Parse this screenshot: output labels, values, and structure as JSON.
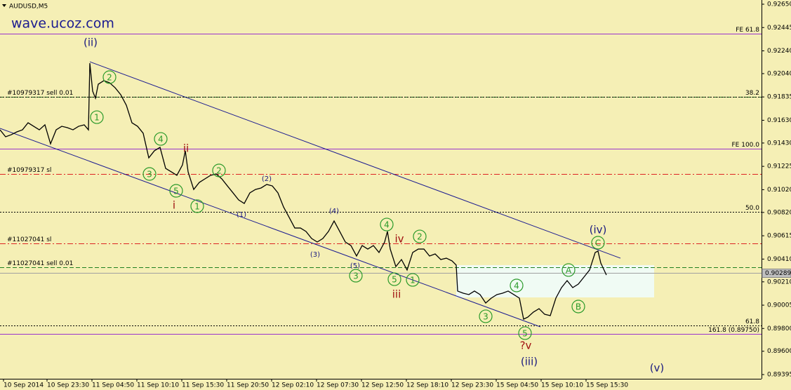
{
  "chart_data": {
    "type": "line",
    "title": "AUDUSD,M5",
    "subtitle": "wave.ucoz.com",
    "xlim": [
      0,
      1085
    ],
    "ylim": [
      0.89358,
      0.92687
    ],
    "xticks": [
      {
        "value": 5,
        "label": "10 Sep 2014"
      },
      {
        "value": 67,
        "label": "10 Sep 23:30"
      },
      {
        "value": 131,
        "label": "11 Sep 04:50"
      },
      {
        "value": 195,
        "label": "11 Sep 10:10"
      },
      {
        "value": 259,
        "label": "11 Sep 15:30"
      },
      {
        "value": 323,
        "label": "11 Sep 20:50"
      },
      {
        "value": 387,
        "label": "12 Sep 02:10"
      },
      {
        "value": 451,
        "label": "12 Sep 07:30"
      },
      {
        "value": 515,
        "label": "12 Sep 12:50"
      },
      {
        "value": 579,
        "label": "12 Sep 18:10"
      },
      {
        "value": 643,
        "label": "12 Sep 23:30"
      },
      {
        "value": 707,
        "label": "15 Sep 04:50"
      },
      {
        "value": 771,
        "label": "15 Sep 10:10"
      },
      {
        "value": 835,
        "label": "15 Sep 15:30"
      }
    ],
    "yticks": [
      {
        "value": 0.9265,
        "label": "0.92650"
      },
      0.92445,
      {
        "value": 0.9224,
        "label": "0.92240"
      },
      {
        "value": 0.9204,
        "label": "0.92040"
      },
      0.91835,
      {
        "value": 0.9163,
        "label": "0.91630"
      },
      {
        "value": 0.9143,
        "label": "0.91430"
      },
      0.91225,
      {
        "value": 0.9102,
        "label": "0.91020"
      },
      {
        "value": 0.9082,
        "label": "0.90820"
      },
      0.90615,
      {
        "value": 0.9041,
        "label": "0.90410"
      },
      {
        "value": 0.9021,
        "label": "0.90210"
      },
      0.90005,
      {
        "value": 0.898,
        "label": "0.89800"
      },
      {
        "value": 0.896,
        "label": "0.89600"
      },
      0.89395
    ],
    "series": [
      {
        "name": "AUDUSD",
        "color": "#000000",
        "x": [
          0,
          8,
          16,
          24,
          32,
          40,
          48,
          56,
          64,
          72,
          80,
          88,
          96,
          104,
          112,
          120,
          126,
          128,
          132,
          136,
          140,
          148,
          156,
          164,
          172,
          180,
          188,
          196,
          204,
          212,
          220,
          228,
          236,
          244,
          252,
          260,
          264,
          268,
          276,
          284,
          292,
          300,
          308,
          316,
          324,
          332,
          340,
          348,
          356,
          364,
          372,
          380,
          388,
          396,
          404,
          412,
          420,
          428,
          436,
          444,
          452,
          460,
          468,
          476,
          484,
          492,
          500,
          508,
          516,
          524,
          532,
          540,
          548,
          552,
          556,
          564,
          572,
          580,
          588,
          596,
          604,
          612,
          620,
          628,
          636,
          644,
          650,
          652,
          660,
          668,
          676,
          684,
          692,
          700,
          708,
          716,
          724,
          732,
          740,
          746,
          752,
          760,
          768,
          776,
          784,
          792,
          800,
          808,
          816,
          824,
          832,
          840,
          848,
          852,
          856,
          864
        ],
        "values": [
          0.91546,
          0.91485,
          0.91503,
          0.91528,
          0.91546,
          0.91608,
          0.91577,
          0.91546,
          0.9159,
          0.91423,
          0.91546,
          0.91577,
          0.91565,
          0.91546,
          0.91577,
          0.9159,
          0.91546,
          0.92132,
          0.91886,
          0.91824,
          0.91947,
          0.91978,
          0.9196,
          0.91916,
          0.91855,
          0.91762,
          0.91608,
          0.91577,
          0.91516,
          0.913,
          0.91362,
          0.91392,
          0.91207,
          0.91177,
          0.91146,
          0.91238,
          0.91362,
          0.91177,
          0.91022,
          0.91084,
          0.91115,
          0.91146,
          0.91158,
          0.91115,
          0.91053,
          0.90992,
          0.9093,
          0.90899,
          0.90992,
          0.91022,
          0.91035,
          0.91066,
          0.91053,
          0.90992,
          0.90868,
          0.90776,
          0.90683,
          0.90683,
          0.90653,
          0.90591,
          0.9056,
          0.90591,
          0.90653,
          0.90745,
          0.90653,
          0.9056,
          0.90529,
          0.90437,
          0.90529,
          0.90498,
          0.90529,
          0.90468,
          0.9056,
          0.90653,
          0.90498,
          0.90344,
          0.90406,
          0.90314,
          0.90468,
          0.90498,
          0.90498,
          0.90437,
          0.90455,
          0.90406,
          0.90418,
          0.90394,
          0.90357,
          0.90129,
          0.9011,
          0.90098,
          0.90129,
          0.90098,
          0.90024,
          0.90067,
          0.90098,
          0.9011,
          0.90129,
          0.90098,
          0.90067,
          0.89882,
          0.899,
          0.89944,
          0.89974,
          0.89925,
          0.89913,
          0.90067,
          0.90159,
          0.90221,
          0.90159,
          0.9019,
          0.90252,
          0.90314,
          0.90468,
          0.9048,
          0.90375,
          0.9027
        ]
      }
    ],
    "levels": [
      {
        "label": "FE 61.8",
        "value": 0.92391,
        "color": "#9933cc",
        "style": "solid",
        "side": "right"
      },
      {
        "label": "#10979317 sell 0.01",
        "value": 0.91836,
        "color": "#208020",
        "style": "dash",
        "side": "left"
      },
      {
        "label": "38.2",
        "value": 0.91836,
        "color": "#000000",
        "style": "dot",
        "side": "right"
      },
      {
        "label": "FE 100.0",
        "value": 0.9138,
        "color": "#9933cc",
        "style": "solid",
        "side": "right"
      },
      {
        "label": "#10979317 sl",
        "value": 0.91158,
        "color": "#dd2222",
        "style": "dashdot",
        "side": "left"
      },
      {
        "label": "50.0",
        "value": 0.90825,
        "color": "#000000",
        "style": "dot",
        "side": "right"
      },
      {
        "label": "#11027041 sl",
        "value": 0.90548,
        "color": "#dd2222",
        "style": "dashdot",
        "side": "left"
      },
      {
        "label": "#11027041 sell 0.01",
        "value": 0.90338,
        "color": "#208020",
        "style": "dash",
        "side": "left"
      },
      {
        "label": "61.8",
        "value": 0.89826,
        "color": "#000000",
        "style": "dot",
        "side": "right"
      },
      {
        "label": "161.8  (0.89750)",
        "value": 0.8975,
        "color": "#9933cc",
        "style": "solid",
        "side": "right"
      }
    ],
    "current_price": {
      "value": 0.90289,
      "label": "0.90289"
    },
    "channels": [
      {
        "x": [
          128,
          884
        ],
        "y": [
          0.92144,
          0.90418
        ],
        "color": "#1a1a90"
      },
      {
        "x": [
          0,
          770
        ],
        "y": [
          0.91559,
          0.89814
        ],
        "color": "#1a1a90"
      }
    ],
    "box": {
      "x": [
        650,
        932
      ],
      "y": [
        0.90357,
        0.90073
      ],
      "color": "#f0fbf4"
    },
    "annotations": [
      {
        "text": "(ii)",
        "x": 129,
        "y": 0.92317,
        "color": "#1a1a80",
        "circled": false
      },
      {
        "text": "1",
        "x": 138,
        "y": 0.91657,
        "color": "#2a9a2a",
        "circled": true
      },
      {
        "text": "2",
        "x": 156,
        "y": 0.92009,
        "color": "#2a9a2a",
        "circled": true
      },
      {
        "text": "3",
        "x": 213,
        "y": 0.91158,
        "color": "#2a9a2a",
        "circled": true
      },
      {
        "text": "4",
        "x": 229,
        "y": 0.91466,
        "color": "#2a9a2a",
        "circled": true
      },
      {
        "text": "5",
        "x": 251,
        "y": 0.9101,
        "color": "#2a9a2a",
        "circled": true
      },
      {
        "text": "ii",
        "x": 265,
        "y": 0.91386,
        "color": "#a01010",
        "circled": false
      },
      {
        "text": "i",
        "x": 248,
        "y": 0.90887,
        "color": "#a01010",
        "circled": false
      },
      {
        "text": "1",
        "x": 281,
        "y": 0.90875,
        "color": "#2a9a2a",
        "circled": true
      },
      {
        "text": "2",
        "x": 312,
        "y": 0.91189,
        "color": "#2a9a2a",
        "circled": true
      },
      {
        "text": "(1)",
        "x": 344,
        "y": 0.90807,
        "color": "#1a1a80",
        "circled": false
      },
      {
        "text": "(2)",
        "x": 380,
        "y": 0.91121,
        "color": "#1a1a80",
        "circled": false
      },
      {
        "text": "(3)",
        "x": 449,
        "y": 0.90455,
        "color": "#1a1a80",
        "circled": false
      },
      {
        "text": "(4)",
        "x": 476,
        "y": 0.90838,
        "color": "#1a1a80",
        "circled": false
      },
      {
        "text": "(5)",
        "x": 506,
        "y": 0.90357,
        "color": "#1a1a80",
        "circled": false
      },
      {
        "text": "3",
        "x": 507,
        "y": 0.90264,
        "color": "#2a9a2a",
        "circled": true
      },
      {
        "text": "4",
        "x": 551,
        "y": 0.90714,
        "color": "#2a9a2a",
        "circled": true
      },
      {
        "text": "iv",
        "x": 569,
        "y": 0.90591,
        "color": "#a01010",
        "circled": false
      },
      {
        "text": "2",
        "x": 598,
        "y": 0.90609,
        "color": "#2a9a2a",
        "circled": true
      },
      {
        "text": "5",
        "x": 562,
        "y": 0.90233,
        "color": "#2a9a2a",
        "circled": true
      },
      {
        "text": "1",
        "x": 588,
        "y": 0.90227,
        "color": "#2a9a2a",
        "circled": true
      },
      {
        "text": "iii",
        "x": 565,
        "y": 0.90104,
        "color": "#a01010",
        "circled": false
      },
      {
        "text": "3",
        "x": 692,
        "y": 0.89907,
        "color": "#2a9a2a",
        "circled": true
      },
      {
        "text": "4",
        "x": 736,
        "y": 0.90178,
        "color": "#2a9a2a",
        "circled": true
      },
      {
        "text": "5",
        "x": 748,
        "y": 0.89759,
        "color": "#2a9a2a",
        "circled": true
      },
      {
        "text": "?v",
        "x": 749,
        "y": 0.89654,
        "color": "#a01010",
        "circled": false
      },
      {
        "text": "(iii)",
        "x": 754,
        "y": 0.89512,
        "color": "#1a1a80",
        "circled": false
      },
      {
        "text": "(iv)",
        "x": 852,
        "y": 0.90671,
        "color": "#1a1a80",
        "circled": false
      },
      {
        "text": "C",
        "x": 852,
        "y": 0.90554,
        "color": "#2a9a2a",
        "circled": true
      },
      {
        "text": "A",
        "x": 810,
        "y": 0.90314,
        "color": "#2a9a2a",
        "circled": true
      },
      {
        "text": "B",
        "x": 824,
        "y": 0.89993,
        "color": "#2a9a2a",
        "circled": true
      },
      {
        "text": "(v)",
        "x": 936,
        "y": 0.89457,
        "color": "#1a1a80",
        "circled": false
      }
    ]
  }
}
